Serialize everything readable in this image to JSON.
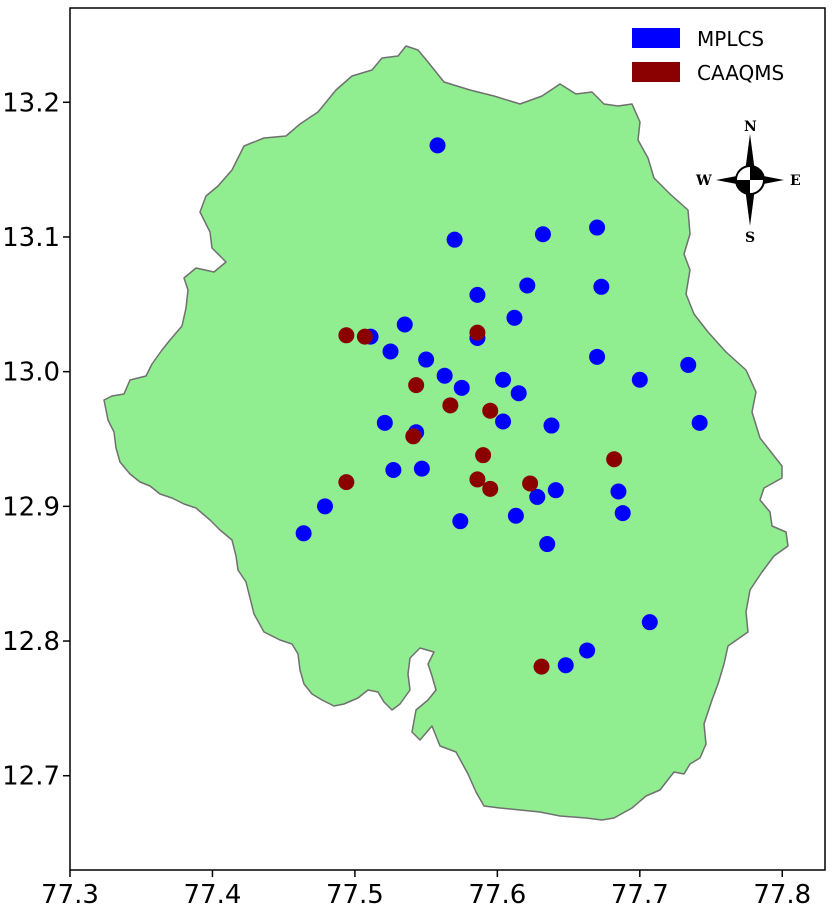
{
  "chart_data": {
    "type": "scatter",
    "title": "",
    "xlabel": "",
    "ylabel": "",
    "xlim": [
      77.3,
      77.83
    ],
    "ylim": [
      12.63,
      13.27
    ],
    "x_ticks": [
      "77.3",
      "77.4",
      "77.5",
      "77.6",
      "77.7",
      "77.8"
    ],
    "y_ticks": [
      "12.7",
      "12.8",
      "12.9",
      "13.0",
      "13.1",
      "13.2"
    ],
    "grid": false,
    "legend_position": "top-right",
    "region_color": "#90ee90",
    "region_outline_color": "#707070",
    "series": [
      {
        "name": "MPLCS",
        "color": "#0000ff",
        "points": [
          [
            77.558,
            13.168
          ],
          [
            77.57,
            13.098
          ],
          [
            77.632,
            13.102
          ],
          [
            77.67,
            13.107
          ],
          [
            77.621,
            13.064
          ],
          [
            77.673,
            13.063
          ],
          [
            77.586,
            13.057
          ],
          [
            77.612,
            13.04
          ],
          [
            77.535,
            13.035
          ],
          [
            77.586,
            13.025
          ],
          [
            77.511,
            13.026
          ],
          [
            77.525,
            13.015
          ],
          [
            77.67,
            13.011
          ],
          [
            77.55,
            13.009
          ],
          [
            77.734,
            13.005
          ],
          [
            77.563,
            12.997
          ],
          [
            77.604,
            12.994
          ],
          [
            77.7,
            12.994
          ],
          [
            77.575,
            12.988
          ],
          [
            77.615,
            12.984
          ],
          [
            77.604,
            12.963
          ],
          [
            77.521,
            12.962
          ],
          [
            77.638,
            12.96
          ],
          [
            77.742,
            12.962
          ],
          [
            77.543,
            12.955
          ],
          [
            77.527,
            12.927
          ],
          [
            77.547,
            12.928
          ],
          [
            77.641,
            12.912
          ],
          [
            77.628,
            12.907
          ],
          [
            77.685,
            12.911
          ],
          [
            77.479,
            12.9
          ],
          [
            77.688,
            12.895
          ],
          [
            77.613,
            12.893
          ],
          [
            77.574,
            12.889
          ],
          [
            77.464,
            12.88
          ],
          [
            77.635,
            12.872
          ],
          [
            77.707,
            12.814
          ],
          [
            77.663,
            12.793
          ],
          [
            77.648,
            12.782
          ]
        ]
      },
      {
        "name": "CAAQMS",
        "color": "#8b0000",
        "points": [
          [
            77.494,
            13.027
          ],
          [
            77.507,
            13.026
          ],
          [
            77.586,
            13.029
          ],
          [
            77.543,
            12.99
          ],
          [
            77.567,
            12.975
          ],
          [
            77.595,
            12.971
          ],
          [
            77.541,
            12.952
          ],
          [
            77.59,
            12.938
          ],
          [
            77.682,
            12.935
          ],
          [
            77.494,
            12.918
          ],
          [
            77.586,
            12.92
          ],
          [
            77.595,
            12.913
          ],
          [
            77.623,
            12.917
          ],
          [
            77.631,
            12.781
          ]
        ]
      }
    ],
    "compass": {
      "north": "N",
      "south": "S",
      "west": "W",
      "east": "E"
    }
  }
}
